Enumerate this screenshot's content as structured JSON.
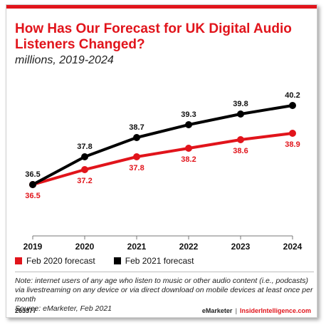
{
  "title": "How Has Our Forecast for UK Digital Audio Listeners Changed?",
  "subtitle": "millions, 2019-2024",
  "colors": {
    "accent": "#e1141b",
    "feb2020": "#e1141b",
    "feb2021": "#000000"
  },
  "chart_data": {
    "type": "line",
    "categories": [
      "2019",
      "2020",
      "2021",
      "2022",
      "2023",
      "2024"
    ],
    "series": [
      {
        "name": "Feb 2020 forecast",
        "values": [
          36.5,
          37.2,
          37.8,
          38.2,
          38.6,
          38.9
        ],
        "color": "#e1141b",
        "labels": [
          "36.5",
          "37.2",
          "37.8",
          "38.2",
          "38.6",
          "38.9"
        ]
      },
      {
        "name": "Feb 2021 forecast",
        "values": [
          36.5,
          37.8,
          38.7,
          39.3,
          39.8,
          40.2
        ],
        "color": "#000000",
        "labels": [
          "36.5",
          "37.8",
          "38.7",
          "39.3",
          "39.8",
          "40.2"
        ]
      }
    ],
    "ylim": [
      35,
      40.5
    ],
    "grid": false,
    "legend_position": "bottom-left"
  },
  "legend": {
    "feb2020": "Feb 2020 forecast",
    "feb2021": "Feb 2021 forecast"
  },
  "note": "Note: internet users of any age who listen to music or other audio content (i.e., podcasts) via livestreaming on any device or via direct download on mobile devices at least once per month",
  "source": "Source: eMarketer, Feb 2021",
  "footer": {
    "id": "263377",
    "brand": "eMarketer",
    "separator": "|",
    "site": "InsiderIntelligence.com"
  }
}
